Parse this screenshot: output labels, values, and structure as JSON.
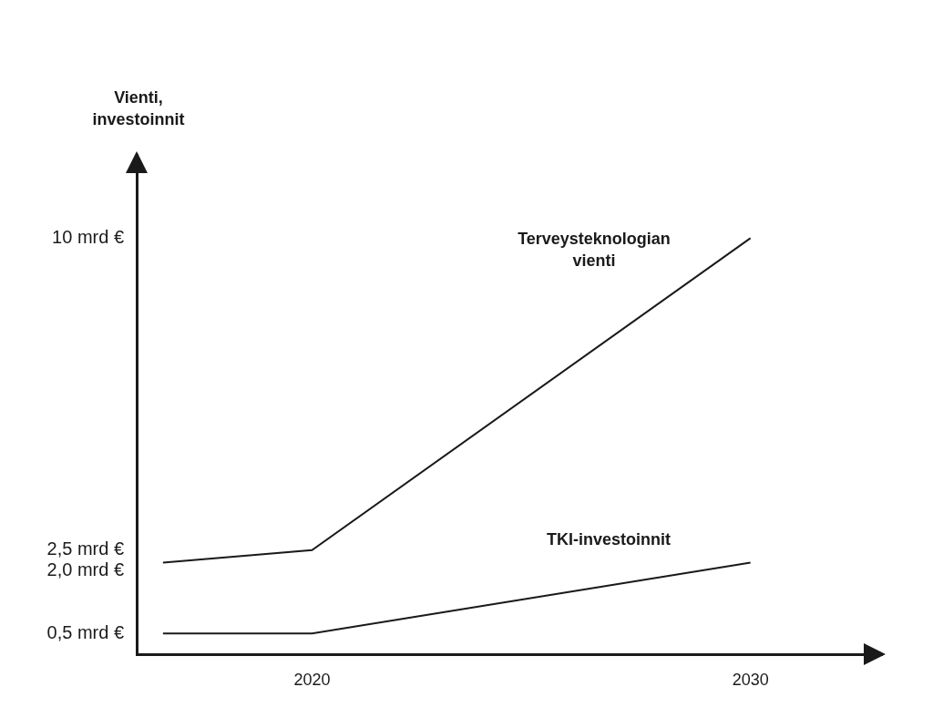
{
  "chart_data": {
    "type": "line",
    "ylabel": "Vienti, investoinnit",
    "x": [
      2016.6,
      2020,
      2030
    ],
    "series": [
      {
        "name": "Terveysteknologian vienti",
        "color": "#1a1a1a",
        "values": [
          2.2,
          2.5,
          10
        ],
        "marker": "none",
        "line_style": "solid"
      },
      {
        "name": "TKI-investoinnit",
        "color": "#1a1a1a",
        "values": [
          0.5,
          0.5,
          2.2
        ],
        "marker": "none",
        "line_style": "solid"
      }
    ],
    "xlim": [
      2016,
      2033
    ],
    "xticks": [
      2020,
      2030
    ],
    "ylim": [
      0,
      12
    ],
    "yticks": [
      {
        "value": 0.5,
        "label": "0,5 mrd €"
      },
      {
        "value": 2.0,
        "label": "2,0 mrd €"
      },
      {
        "value": 2.5,
        "label": "2,5 mrd €"
      },
      {
        "value": 10,
        "label": "10 mrd €"
      }
    ],
    "grid": false
  }
}
